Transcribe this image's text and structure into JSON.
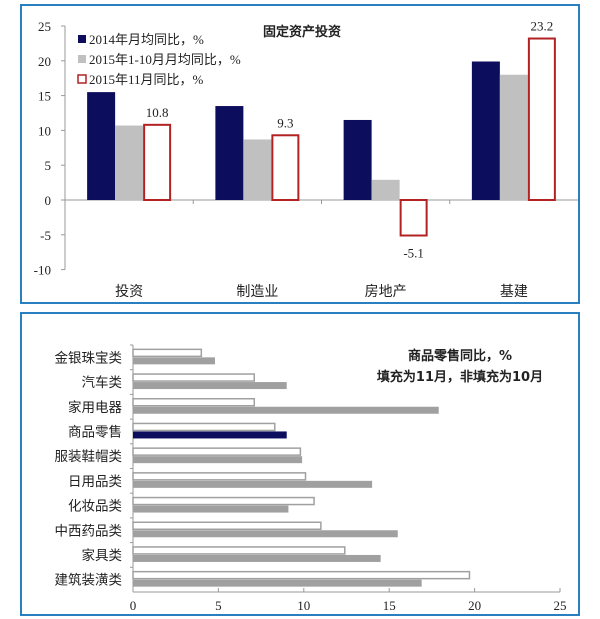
{
  "chart_data": [
    {
      "type": "bar",
      "title": "固定资产投资",
      "categories": [
        "投资",
        "制造业",
        "房地产",
        "基建"
      ],
      "ylim": [
        -10,
        25
      ],
      "yticks": [
        -10,
        -5,
        0,
        5,
        10,
        15,
        20,
        25
      ],
      "legend_position": "top-left",
      "series": [
        {
          "name": "2014年月均同比，%",
          "values": [
            15.5,
            13.5,
            11.5,
            19.9
          ],
          "color": "#0d0d5e",
          "style": "filled"
        },
        {
          "name": "2015年1-10月月均同比，%",
          "values": [
            10.7,
            8.7,
            2.9,
            18.0
          ],
          "color": "#c0c0c0",
          "style": "filled"
        },
        {
          "name": "2015年11月同比，%",
          "values": [
            10.8,
            9.3,
            -5.1,
            23.2
          ],
          "color": "#b22222",
          "style": "outline",
          "data_labels": [
            "10.8",
            "9.3",
            "-5.1",
            "23.2"
          ]
        }
      ]
    },
    {
      "type": "bar",
      "orientation": "horizontal",
      "title": "商品零售同比，%",
      "subtitle": "填充为11月，非填充为10月",
      "categories": [
        "金银珠宝类",
        "汽车类",
        "家用电器",
        "商品零售",
        "服装鞋帽类",
        "日用品类",
        "化妆品类",
        "中西药品类",
        "家具类",
        "建筑装潢类"
      ],
      "xlim": [
        0,
        25
      ],
      "xticks": [
        0,
        5,
        10,
        15,
        20,
        25
      ],
      "series": [
        {
          "values": [
            4.0,
            7.1,
            7.1,
            8.3,
            9.8,
            10.1,
            10.6,
            11.0,
            12.4,
            19.7
          ],
          "color": "#a0a0a0",
          "style": "outline"
        },
        {
          "values": [
            4.8,
            9.0,
            17.9,
            9.0,
            9.9,
            14.0,
            9.1,
            15.5,
            14.5,
            16.9
          ],
          "color": "#a0a0a0",
          "highlight_color": "#0d0d5e",
          "highlight_category": "商品零售",
          "style": "filled"
        }
      ]
    }
  ]
}
